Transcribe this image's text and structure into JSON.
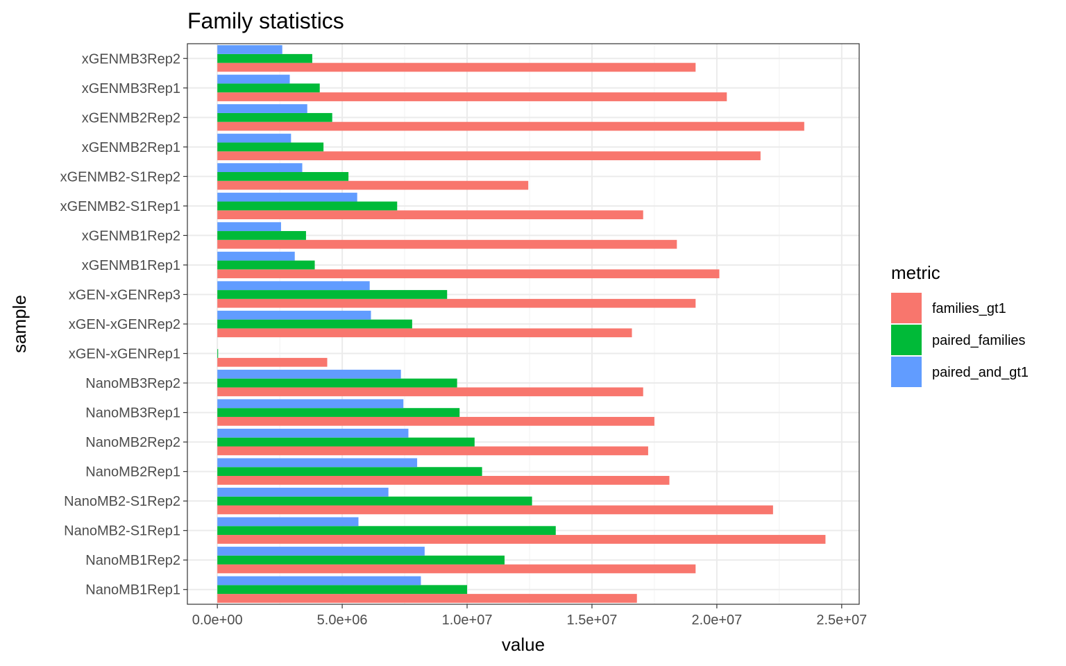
{
  "chart_data": {
    "type": "bar",
    "orientation": "horizontal",
    "title": "Family statistics",
    "xlabel": "value",
    "ylabel": "sample",
    "xlim": [
      -1200000,
      25700000
    ],
    "x_ticks": [
      0,
      5000000,
      10000000,
      15000000,
      20000000,
      25000000
    ],
    "x_tick_labels": [
      "0.0e+00",
      "5.0e+06",
      "1.0e+07",
      "1.5e+07",
      "2.0e+07",
      "2.5e+07"
    ],
    "grid": true,
    "legend": {
      "title": "metric",
      "position": "right"
    },
    "categories": [
      "NanoMB1Rep1",
      "NanoMB1Rep2",
      "NanoMB2-S1Rep1",
      "NanoMB2-S1Rep2",
      "NanoMB2Rep1",
      "NanoMB2Rep2",
      "NanoMB3Rep1",
      "NanoMB3Rep2",
      "xGEN-xGENRep1",
      "xGEN-xGENRep2",
      "xGEN-xGENRep3",
      "xGENMB1Rep1",
      "xGENMB1Rep2",
      "xGENMB2-S1Rep1",
      "xGENMB2-S1Rep2",
      "xGENMB2Rep1",
      "xGENMB2Rep2",
      "xGENMB3Rep1",
      "xGENMB3Rep2"
    ],
    "series": [
      {
        "name": "families_gt1",
        "color": "#F8766D",
        "values": [
          16800000,
          19150000,
          24350000,
          22250000,
          18100000,
          17250000,
          17500000,
          17050000,
          4400000,
          16600000,
          19150000,
          20100000,
          18400000,
          17050000,
          12450000,
          21750000,
          23500000,
          20400000,
          19150000
        ]
      },
      {
        "name": "paired_families",
        "color": "#00BA38",
        "values": [
          10000000,
          11500000,
          13550000,
          12600000,
          10600000,
          10300000,
          9700000,
          9600000,
          30000,
          7800000,
          9200000,
          3900000,
          3550000,
          7200000,
          5250000,
          4250000,
          4600000,
          4100000,
          3800000
        ]
      },
      {
        "name": "paired_and_gt1",
        "color": "#619CFF",
        "values": [
          8150000,
          8300000,
          5650000,
          6850000,
          8000000,
          7650000,
          7450000,
          7350000,
          0,
          6150000,
          6100000,
          3100000,
          2550000,
          5600000,
          3400000,
          2950000,
          3600000,
          2900000,
          2600000
        ]
      }
    ]
  }
}
